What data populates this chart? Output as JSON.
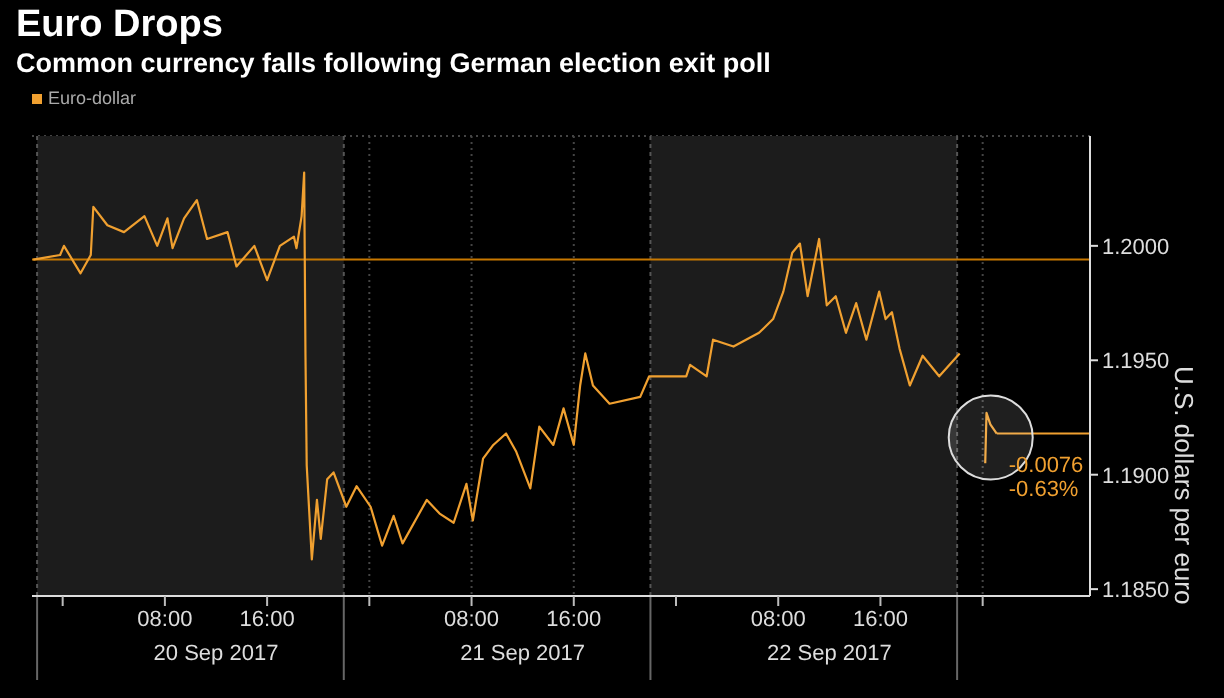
{
  "chart_data": {
    "type": "line",
    "title": "Euro Drops",
    "subtitle": "Common currency falls following German election exit poll",
    "ylabel": "U.S. dollars per euro",
    "legend": "top left",
    "grid": true,
    "x": [
      "2017-09-19T21:42",
      "2017-09-19T23:48",
      "2017-09-20T00:06",
      "2017-09-20T01:24",
      "2017-09-20T02:12",
      "2017-09-20T02:24",
      "2017-09-20T03:30",
      "2017-09-20T04:48",
      "2017-09-20T06:24",
      "2017-09-20T07:24",
      "2017-09-20T08:12",
      "2017-09-20T08:36",
      "2017-09-20T09:30",
      "2017-09-20T10:30",
      "2017-09-20T11:18",
      "2017-09-20T12:54",
      "2017-09-20T13:36",
      "2017-09-20T15:00",
      "2017-09-20T16:00",
      "2017-09-20T17:00",
      "2017-09-20T18:06",
      "2017-09-20T18:18",
      "2017-09-20T18:42",
      "2017-09-20T18:54",
      "2017-09-20T19:00",
      "2017-09-20T19:06",
      "2017-09-20T19:30",
      "2017-09-20T19:54",
      "2017-09-20T20:12",
      "2017-09-20T20:42",
      "2017-09-20T21:12",
      "2017-09-20T22:12",
      "2017-09-20T23:00",
      "2017-09-21T00:06",
      "2017-09-21T01:00",
      "2017-09-21T01:54",
      "2017-09-21T02:36",
      "2017-09-21T04:30",
      "2017-09-21T05:30",
      "2017-09-21T06:36",
      "2017-09-21T07:36",
      "2017-09-21T08:06",
      "2017-09-21T08:54",
      "2017-09-21T09:42",
      "2017-09-21T10:42",
      "2017-09-21T11:30",
      "2017-09-21T12:36",
      "2017-09-21T13:18",
      "2017-09-21T14:24",
      "2017-09-21T15:12",
      "2017-09-21T16:00",
      "2017-09-21T16:30",
      "2017-09-21T16:54",
      "2017-09-21T17:30",
      "2017-09-21T18:48",
      "2017-09-21T21:12",
      "2017-09-21T21:54",
      "2017-09-22T00:48",
      "2017-09-22T01:06",
      "2017-09-22T02:24",
      "2017-09-22T02:54",
      "2017-09-22T04:30",
      "2017-09-22T06:30",
      "2017-09-22T07:36",
      "2017-09-22T08:24",
      "2017-09-22T09:06",
      "2017-09-22T09:42",
      "2017-09-22T10:18",
      "2017-09-22T11:12",
      "2017-09-22T11:48",
      "2017-09-22T12:30",
      "2017-09-22T13:18",
      "2017-09-22T14:06",
      "2017-09-22T14:54",
      "2017-09-22T15:54",
      "2017-09-22T16:24",
      "2017-09-22T16:54",
      "2017-09-22T17:30",
      "2017-09-22T18:18",
      "2017-09-22T19:18",
      "2017-09-22T20:36",
      "2017-09-22T22:12",
      "2017-09-22T23:00",
      "2017-09-23T00:12",
      "2017-09-23T00:18",
      "2017-09-23T00:36",
      "2017-09-23T01:06"
    ],
    "series": [
      {
        "name": "Euro-dollar",
        "color": "#f0a030",
        "values": [
          1.1994,
          1.1996,
          1.2,
          1.1988,
          1.1996,
          1.2017,
          1.2009,
          1.2006,
          1.2013,
          1.2,
          1.2012,
          1.1999,
          1.2012,
          1.202,
          1.2003,
          1.2006,
          1.1991,
          1.2,
          1.1985,
          1.2,
          1.2004,
          1.1999,
          1.2013,
          1.2032,
          1.1953,
          1.1904,
          1.1863,
          1.1889,
          1.1872,
          1.1898,
          1.1901,
          1.1886,
          1.1895,
          1.1886,
          1.1869,
          1.1882,
          1.187,
          1.1889,
          1.1883,
          1.1879,
          1.1896,
          1.188,
          1.1907,
          1.1913,
          1.1918,
          1.191,
          1.1894,
          1.1921,
          1.1913,
          1.1929,
          1.1913,
          1.1939,
          1.1953,
          1.1939,
          1.1931,
          1.1934,
          1.1943,
          1.1943,
          1.1948,
          1.1943,
          1.1959,
          1.1956,
          1.1962,
          1.1968,
          1.198,
          1.1997,
          1.2001,
          1.1978,
          1.2003,
          1.1974,
          1.1978,
          1.1962,
          1.1975,
          1.1959,
          1.198,
          1.1968,
          1.1971,
          1.1955,
          1.1939,
          1.1952,
          1.1943,
          1.1953,
          null,
          1.1905,
          1.1927,
          1.1922,
          1.1918
        ]
      }
    ],
    "xlim": [
      "2017-09-19T21:36",
      "2017-09-23T08:24"
    ],
    "xticks": [
      {
        "value": "2017-09-20T00:00",
        "label": null
      },
      {
        "value": "2017-09-20T08:00",
        "label": "08:00"
      },
      {
        "value": "2017-09-20T16:00",
        "label": "16:00"
      },
      {
        "value": "2017-09-21T00:00",
        "label": null
      },
      {
        "value": "2017-09-21T08:00",
        "label": "08:00"
      },
      {
        "value": "2017-09-21T16:00",
        "label": "16:00"
      },
      {
        "value": "2017-09-22T00:00",
        "label": null
      },
      {
        "value": "2017-09-22T08:00",
        "label": "08:00"
      },
      {
        "value": "2017-09-22T16:00",
        "label": "16:00"
      },
      {
        "value": "2017-09-23T00:00",
        "label": null
      }
    ],
    "ylim": [
      1.1847,
      1.2048
    ],
    "yticks": [
      {
        "value": 1.185,
        "label": "1.1850"
      },
      {
        "value": 1.19,
        "label": "1.1900"
      },
      {
        "value": 1.195,
        "label": "1.1950"
      },
      {
        "value": 1.2,
        "label": "1.2000"
      }
    ],
    "bands": [
      {
        "axis": "x",
        "from": "2017-09-19T22:00",
        "to": "2017-09-20T22:00",
        "color": "#1c1c1c"
      },
      {
        "axis": "x",
        "from": "2017-09-21T22:00",
        "to": "2017-09-22T22:00",
        "color": "#1c1c1c"
      }
    ],
    "ref_lines": [
      {
        "axis": "y",
        "value": 1.1994,
        "color": "#c87800"
      }
    ],
    "annotations": [
      {
        "text": "-0.0076",
        "x": "2017-09-23T01:06",
        "y": 1.1918
      },
      {
        "text": "-0.63%",
        "x": "2017-09-23T01:06",
        "y": 1.1918
      },
      "20 Sep 2017",
      "21 Sep 2017",
      "22 Sep 2017"
    ]
  }
}
